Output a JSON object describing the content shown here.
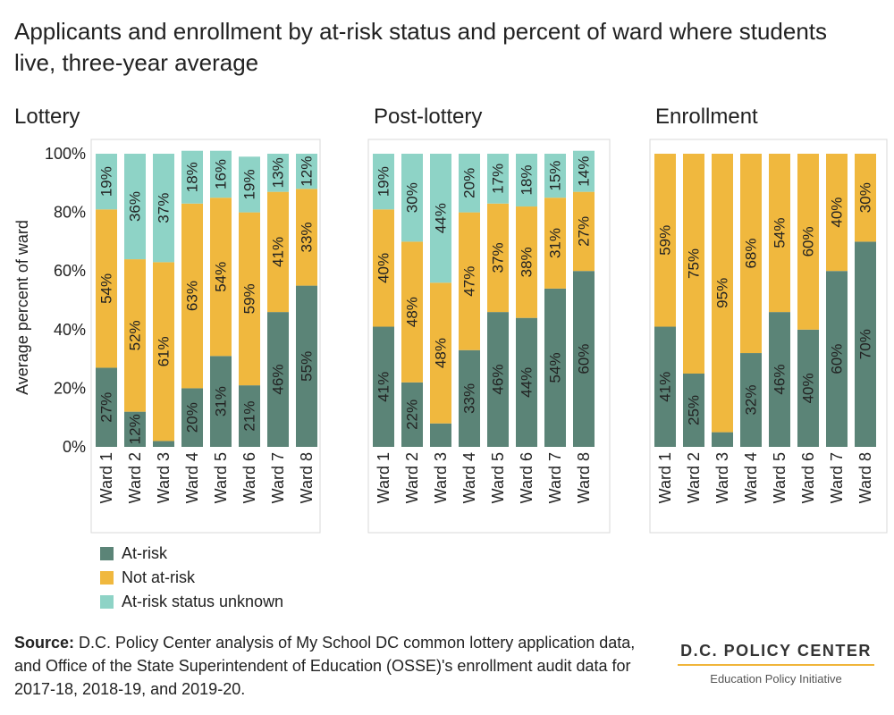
{
  "title": "Applicants and enrollment by at-risk status and percent of ward where students live, three-year average",
  "colors": {
    "at_risk": "#5b8477",
    "not_at_risk": "#f0b83e",
    "unknown": "#8ed3c6"
  },
  "legend": [
    {
      "label": "At-risk",
      "color": "#5b8477"
    },
    {
      "label": "Not at-risk",
      "color": "#f0b83e"
    },
    {
      "label": "At-risk status unknown",
      "color": "#8ed3c6"
    }
  ],
  "source": {
    "label": "Source:",
    "text": "D.C. Policy Center analysis of My School DC common lottery application data, and Office of the State Superintendent of Education (OSSE)'s enrollment audit data for 2017-18, 2018-19, and 2019-20."
  },
  "logo": {
    "name": "D.C. POLICY CENTER",
    "subtitle": "Education Policy Initiative"
  },
  "chart_data": [
    {
      "type": "bar",
      "stacked": true,
      "title": "Lottery",
      "ylabel": "Average percent of ward",
      "yticks": [
        "0%",
        "20%",
        "40%",
        "60%",
        "80%",
        "100%"
      ],
      "ylim": [
        0,
        100
      ],
      "categories": [
        "Ward 1",
        "Ward 2",
        "Ward 3",
        "Ward 4",
        "Ward 5",
        "Ward 6",
        "Ward 7",
        "Ward 8"
      ],
      "series": [
        {
          "name": "At-risk",
          "values": [
            27,
            12,
            2,
            20,
            31,
            21,
            46,
            55
          ],
          "labels": [
            "27%",
            "12%",
            "",
            "20%",
            "31%",
            "21%",
            "46%",
            "55%"
          ]
        },
        {
          "name": "Not at-risk",
          "values": [
            54,
            52,
            61,
            63,
            54,
            59,
            41,
            33
          ],
          "labels": [
            "54%",
            "52%",
            "61%",
            "63%",
            "54%",
            "59%",
            "41%",
            "33%"
          ]
        },
        {
          "name": "At-risk status unknown",
          "values": [
            19,
            36,
            37,
            18,
            16,
            19,
            13,
            12
          ],
          "labels": [
            "19%",
            "36%",
            "37%",
            "18%",
            "16%",
            "19%",
            "13%",
            "12%"
          ]
        }
      ]
    },
    {
      "type": "bar",
      "stacked": true,
      "title": "Post-lottery",
      "ylim": [
        0,
        100
      ],
      "categories": [
        "Ward 1",
        "Ward 2",
        "Ward 3",
        "Ward 4",
        "Ward 5",
        "Ward 6",
        "Ward 7",
        "Ward 8"
      ],
      "series": [
        {
          "name": "At-risk",
          "values": [
            41,
            22,
            8,
            33,
            46,
            44,
            54,
            60
          ],
          "labels": [
            "41%",
            "22%",
            "",
            "33%",
            "46%",
            "44%",
            "54%",
            "60%"
          ]
        },
        {
          "name": "Not at-risk",
          "values": [
            40,
            48,
            48,
            47,
            37,
            38,
            31,
            27
          ],
          "labels": [
            "40%",
            "48%",
            "48%",
            "47%",
            "37%",
            "38%",
            "31%",
            "27%"
          ]
        },
        {
          "name": "At-risk status unknown",
          "values": [
            19,
            30,
            44,
            20,
            17,
            18,
            15,
            14
          ],
          "labels": [
            "19%",
            "30%",
            "44%",
            "20%",
            "17%",
            "18%",
            "15%",
            "14%"
          ]
        }
      ]
    },
    {
      "type": "bar",
      "stacked": true,
      "title": "Enrollment",
      "ylim": [
        0,
        100
      ],
      "categories": [
        "Ward 1",
        "Ward 2",
        "Ward 3",
        "Ward 4",
        "Ward 5",
        "Ward 6",
        "Ward 7",
        "Ward 8"
      ],
      "series": [
        {
          "name": "At-risk",
          "values": [
            41,
            25,
            5,
            32,
            46,
            40,
            60,
            70
          ],
          "labels": [
            "41%",
            "25%",
            "",
            "32%",
            "46%",
            "40%",
            "60%",
            "70%"
          ]
        },
        {
          "name": "Not at-risk",
          "values": [
            59,
            75,
            95,
            68,
            54,
            60,
            40,
            30
          ],
          "labels": [
            "59%",
            "75%",
            "95%",
            "68%",
            "54%",
            "60%",
            "40%",
            "30%"
          ]
        },
        {
          "name": "At-risk status unknown",
          "values": [
            0,
            0,
            0,
            0,
            0,
            0,
            0,
            0
          ],
          "labels": [
            "",
            "",
            "",
            "",
            "",
            "",
            "",
            ""
          ]
        }
      ]
    }
  ]
}
